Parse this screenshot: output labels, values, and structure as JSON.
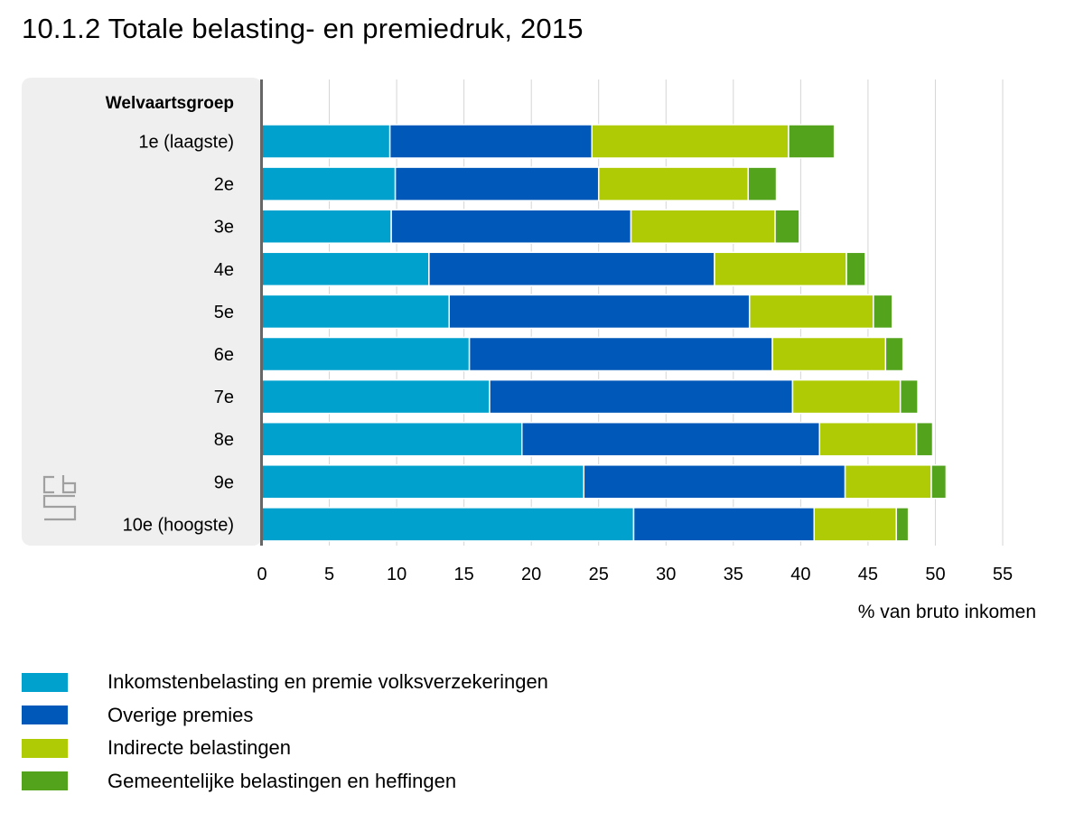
{
  "title": "10.1.2 Totale belasting- en premiedruk, 2015",
  "chart_data": {
    "type": "bar",
    "orientation": "horizontal",
    "stacked": true,
    "category_header": "Welvaartsgroep",
    "categories": [
      "1e (laagste)",
      "2e",
      "3e",
      "4e",
      "5e",
      "6e",
      "7e",
      "8e",
      "9e",
      "10e (hoogste)"
    ],
    "series": [
      {
        "name": "Inkomstenbelasting en premie volksverzekeringen",
        "color": "#00a1cd",
        "values": [
          9.5,
          9.9,
          9.6,
          12.4,
          13.9,
          15.4,
          16.9,
          19.3,
          23.9,
          27.6
        ]
      },
      {
        "name": "Overige premies",
        "color": "#0058b8",
        "values": [
          15.0,
          15.1,
          17.8,
          21.2,
          22.3,
          22.5,
          22.5,
          22.1,
          19.4,
          13.4
        ]
      },
      {
        "name": "Indirecte belastingen",
        "color": "#afcb05",
        "values": [
          14.6,
          11.1,
          10.7,
          9.8,
          9.2,
          8.4,
          8.0,
          7.2,
          6.4,
          6.1
        ]
      },
      {
        "name": "Gemeentelijke belastingen en heffingen",
        "color": "#53a31d",
        "values": [
          3.4,
          2.1,
          1.8,
          1.4,
          1.4,
          1.3,
          1.3,
          1.2,
          1.1,
          0.9
        ]
      }
    ],
    "xlim": [
      0,
      55
    ],
    "xticks": [
      0,
      5,
      10,
      15,
      20,
      25,
      30,
      35,
      40,
      45,
      50,
      55
    ],
    "xlabel": "% van bruto inkomen",
    "grid": true,
    "legend_position": "bottom"
  },
  "colors": {
    "category_panel": "#efefef",
    "gridline": "#d5d5d5",
    "axis_line": "#666666",
    "logo": "#a0a0a0"
  },
  "icons": {
    "logo": "cbs-logo-icon"
  }
}
